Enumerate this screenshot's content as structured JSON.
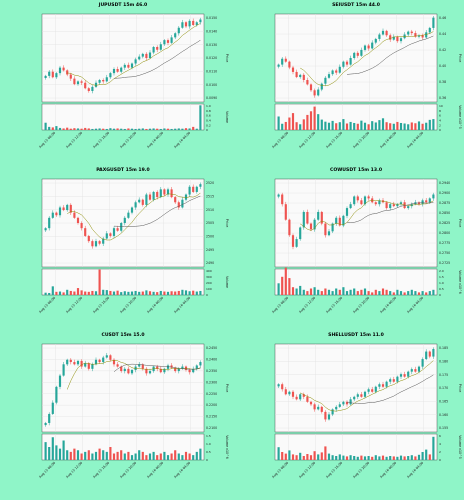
{
  "colors": {
    "page_bg": "#8ff5c8",
    "up": "#26a69a",
    "down": "#ef5350",
    "ma1": "#8a8a00",
    "ma2": "#555555"
  },
  "chart_data": [
    {
      "type": "candlestick",
      "title": "JUPUSDT 15m 46.0",
      "ylabel": "Price",
      "volume_label": "Volume",
      "price_ticks": [
        "0.0150",
        "0.0140",
        "0.0130",
        "0.0120",
        "0.0110",
        "0.0100",
        "0.0090"
      ],
      "ylim": [
        0.0088,
        0.0152
      ],
      "volume_ticks": [
        "1.0",
        "0.8",
        "0.6",
        "0.4",
        "0.2",
        "0"
      ],
      "volume_max": 1.0,
      "x_ticks": [
        "Aug 15 08:00",
        "Aug 15 12:00",
        "Aug 15 16:00",
        "Aug 15 20:00",
        "Aug 16 00:00",
        "Aug 16 04:00"
      ],
      "close": [
        0.0107,
        0.011,
        0.0106,
        0.0109,
        0.0113,
        0.0111,
        0.0108,
        0.0105,
        0.0101,
        0.0103,
        0.0102,
        0.0098,
        0.0096,
        0.0099,
        0.0102,
        0.0104,
        0.0103,
        0.0106,
        0.0109,
        0.0112,
        0.011,
        0.0113,
        0.0115,
        0.0113,
        0.0116,
        0.0119,
        0.0121,
        0.0123,
        0.012,
        0.0124,
        0.0128,
        0.0126,
        0.013,
        0.0133,
        0.0131,
        0.0135,
        0.0138,
        0.0142,
        0.0146,
        0.0143,
        0.0147,
        0.0144,
        0.0146,
        0.0148
      ],
      "volume": [
        0.28,
        0.12,
        0.1,
        0.15,
        0.08,
        0.06,
        0.09,
        0.05,
        0.07,
        0.06,
        0.05,
        0.08,
        0.06,
        0.04,
        0.05,
        0.06,
        0.05,
        0.04,
        0.07,
        0.05,
        0.06,
        0.05,
        0.04,
        0.06,
        0.05,
        0.04,
        0.05,
        0.06,
        0.04,
        0.05,
        0.06,
        0.05,
        0.04,
        0.06,
        0.05,
        0.04,
        0.05,
        0.06,
        0.05,
        0.07,
        0.06,
        0.12,
        0.05,
        0.95
      ]
    },
    {
      "type": "candlestick",
      "title": "SEIUSDT 15m 44.0",
      "ylabel": "Price",
      "volume_label": "Volume x10^5",
      "price_ticks": [
        "0.46",
        "0.44",
        "0.42",
        "0.40",
        "0.38",
        "0.36"
      ],
      "ylim": [
        0.355,
        0.475
      ],
      "volume_ticks": [
        "10",
        "8",
        "6",
        "4",
        "2",
        "0"
      ],
      "volume_max": 10,
      "x_ticks": [
        "Aug 15 08:00",
        "Aug 15 12:00",
        "Aug 15 16:00",
        "Aug 15 20:00",
        "Aug 16 00:00",
        "Aug 16 04:00"
      ],
      "close": [
        0.406,
        0.414,
        0.41,
        0.402,
        0.396,
        0.389,
        0.392,
        0.385,
        0.379,
        0.371,
        0.364,
        0.372,
        0.38,
        0.388,
        0.393,
        0.398,
        0.395,
        0.403,
        0.41,
        0.406,
        0.415,
        0.422,
        0.418,
        0.426,
        0.432,
        0.428,
        0.436,
        0.441,
        0.447,
        0.452,
        0.446,
        0.44,
        0.444,
        0.438,
        0.442,
        0.447,
        0.451,
        0.449,
        0.444,
        0.446,
        0.443,
        0.45,
        0.456,
        0.47
      ],
      "volume": [
        5.2,
        2.4,
        3.1,
        4.8,
        6.5,
        3.0,
        2.2,
        4.1,
        5.8,
        7.2,
        9.0,
        6.1,
        4.0,
        3.2,
        2.8,
        3.5,
        2.6,
        3.0,
        4.2,
        2.5,
        3.1,
        2.7,
        2.4,
        3.6,
        2.8,
        2.2,
        3.4,
        2.9,
        3.8,
        4.5,
        3.0,
        2.6,
        2.4,
        3.1,
        2.7,
        2.5,
        2.2,
        2.9,
        2.6,
        3.3,
        2.4,
        2.8,
        3.9,
        4.2
      ]
    },
    {
      "type": "candlestick",
      "title": "PAXGUSDT 15m 19.0",
      "ylabel": "Price",
      "volume_label": "Volume",
      "price_ticks": [
        "2520",
        "2515",
        "2510",
        "2505",
        "2500",
        "2495",
        "2490"
      ],
      "ylim": [
        2488,
        2522
      ],
      "volume_ticks": [
        "400",
        "300",
        "200",
        "100",
        "0"
      ],
      "volume_max": 450,
      "x_ticks": [
        "Aug 15 08:00",
        "Aug 15 12:00",
        "Aug 15 16:00",
        "Aug 15 20:00",
        "Aug 16 00:00",
        "Aug 16 04:00"
      ],
      "close": [
        2503,
        2507,
        2509,
        2508,
        2511,
        2510,
        2512,
        2509,
        2507,
        2505,
        2503,
        2500,
        2498,
        2496,
        2498,
        2497,
        2499,
        2501,
        2500,
        2503,
        2502,
        2505,
        2507,
        2509,
        2511,
        2513,
        2514,
        2512,
        2516,
        2514,
        2517,
        2515,
        2518,
        2516,
        2518,
        2515,
        2513,
        2511,
        2514,
        2516,
        2519,
        2517,
        2519,
        2520
      ],
      "volume": [
        40,
        35,
        150,
        55,
        60,
        45,
        90,
        70,
        60,
        120,
        80,
        60,
        55,
        70,
        65,
        440,
        90,
        85,
        70,
        60,
        75,
        50,
        65,
        55,
        60,
        70,
        55,
        60,
        80,
        65,
        55,
        50,
        70,
        60,
        55,
        65,
        60,
        70,
        90,
        80,
        65,
        75,
        60,
        70
      ]
    },
    {
      "type": "candlestick",
      "title": "COWUSDT 15m 13.0",
      "ylabel": "Price",
      "volume_label": "Volume x10^6",
      "price_ticks": [
        "0.2940",
        "0.2900",
        "0.2875",
        "0.2850",
        "0.2825",
        "0.2800",
        "0.2775",
        "0.2750",
        "0.2725"
      ],
      "ylim": [
        0.2718,
        0.2945
      ],
      "volume_ticks": [
        "2.0",
        "1.5",
        "1.0",
        "0.5",
        "0"
      ],
      "volume_max": 2.0,
      "x_ticks": [
        "Aug 15 08:00",
        "Aug 15 12:00",
        "Aug 15 16:00",
        "Aug 15 20:00",
        "Aug 16 00:00",
        "Aug 16 04:00"
      ],
      "close": [
        0.2905,
        0.288,
        0.284,
        0.28,
        0.277,
        0.279,
        0.282,
        0.286,
        0.283,
        0.2815,
        0.284,
        0.286,
        0.283,
        0.28,
        0.281,
        0.283,
        0.2845,
        0.2825,
        0.285,
        0.287,
        0.288,
        0.29,
        0.289,
        0.288,
        0.29,
        0.2895,
        0.2885,
        0.288,
        0.289,
        0.2885,
        0.287,
        0.288,
        0.2875,
        0.288,
        0.2885,
        0.287,
        0.2875,
        0.288,
        0.2885,
        0.288,
        0.289,
        0.2885,
        0.2895,
        0.2905
      ],
      "volume": [
        0.9,
        1.4,
        2.1,
        1.3,
        0.6,
        0.5,
        0.7,
        0.4,
        0.3,
        0.5,
        0.6,
        0.4,
        0.3,
        0.5,
        0.4,
        0.3,
        0.5,
        0.4,
        0.6,
        0.3,
        0.4,
        0.5,
        0.3,
        0.4,
        0.5,
        0.3,
        0.2,
        0.4,
        0.3,
        0.5,
        0.4,
        0.3,
        0.2,
        0.4,
        0.3,
        0.2,
        0.3,
        0.4,
        0.3,
        0.2,
        0.3,
        0.2,
        0.3,
        0.4
      ]
    },
    {
      "type": "candlestick",
      "title": "CUSDT 15m 15.0",
      "ylabel": "Price",
      "volume_label": "Volume x10^6",
      "price_ticks": [
        "0.2450",
        "0.2400",
        "0.2350",
        "0.2300",
        "0.2250",
        "0.2200",
        "0.2150",
        "0.2100"
      ],
      "ylim": [
        0.208,
        0.247
      ],
      "volume_ticks": [
        "1.5",
        "1.0",
        "0.5",
        "0"
      ],
      "volume_max": 1.6,
      "x_ticks": [
        "Aug 15 08:00",
        "Aug 15 12:00",
        "Aug 15 16:00",
        "Aug 15 20:00",
        "Aug 16 00:00",
        "Aug 16 04:00"
      ],
      "close": [
        0.212,
        0.216,
        0.221,
        0.228,
        0.233,
        0.238,
        0.24,
        0.239,
        0.238,
        0.2395,
        0.237,
        0.2385,
        0.236,
        0.238,
        0.24,
        0.239,
        0.241,
        0.242,
        0.24,
        0.238,
        0.237,
        0.235,
        0.236,
        0.234,
        0.2355,
        0.237,
        0.238,
        0.236,
        0.234,
        0.235,
        0.237,
        0.236,
        0.2345,
        0.236,
        0.2375,
        0.2365,
        0.235,
        0.236,
        0.237,
        0.2355,
        0.2345,
        0.236,
        0.2375,
        0.239
      ],
      "volume": [
        1.1,
        0.8,
        1.4,
        0.9,
        0.7,
        1.2,
        0.6,
        0.5,
        0.7,
        0.6,
        0.4,
        0.5,
        0.6,
        0.4,
        0.5,
        0.7,
        0.6,
        0.5,
        0.8,
        0.4,
        0.5,
        0.6,
        0.4,
        0.5,
        0.3,
        0.4,
        0.6,
        0.5,
        0.3,
        0.4,
        0.5,
        0.3,
        0.4,
        0.5,
        0.3,
        0.4,
        0.6,
        0.4,
        0.3,
        0.5,
        0.4,
        0.3,
        0.5,
        0.7
      ]
    },
    {
      "type": "candlestick",
      "title": "SHELLUSDT 15m 11.0",
      "ylabel": "Price",
      "volume_label": "Volume x10^5",
      "price_ticks": [
        "0.185",
        "0.180",
        "0.175",
        "0.170",
        "0.165",
        "0.160",
        "0.155"
      ],
      "ylim": [
        0.153,
        0.188
      ],
      "volume_ticks": [
        "6",
        "4",
        "2",
        "0"
      ],
      "volume_max": 6.5,
      "x_ticks": [
        "Aug 15 08:00",
        "Aug 15 12:00",
        "Aug 15 16:00",
        "Aug 15 20:00",
        "Aug 16 00:00",
        "Aug 16 04:00"
      ],
      "close": [
        0.172,
        0.17,
        0.168,
        0.169,
        0.167,
        0.166,
        0.168,
        0.167,
        0.165,
        0.164,
        0.162,
        0.163,
        0.161,
        0.158,
        0.16,
        0.162,
        0.163,
        0.164,
        0.165,
        0.164,
        0.166,
        0.167,
        0.168,
        0.167,
        0.169,
        0.17,
        0.169,
        0.171,
        0.172,
        0.171,
        0.173,
        0.174,
        0.173,
        0.175,
        0.176,
        0.175,
        0.177,
        0.178,
        0.177,
        0.179,
        0.182,
        0.185,
        0.183,
        0.186
      ],
      "volume": [
        3.2,
        2.0,
        1.6,
        2.4,
        1.4,
        1.2,
        1.8,
        1.0,
        1.5,
        1.2,
        2.2,
        1.4,
        1.9,
        3.4,
        1.6,
        1.2,
        1.0,
        1.4,
        1.1,
        0.9,
        1.2,
        1.0,
        0.8,
        1.1,
        0.9,
        1.0,
        0.8,
        1.2,
        0.9,
        1.1,
        0.8,
        1.0,
        0.9,
        0.8,
        1.1,
        0.9,
        1.0,
        1.2,
        0.9,
        1.3,
        2.0,
        2.6,
        1.4,
        5.8
      ]
    }
  ]
}
